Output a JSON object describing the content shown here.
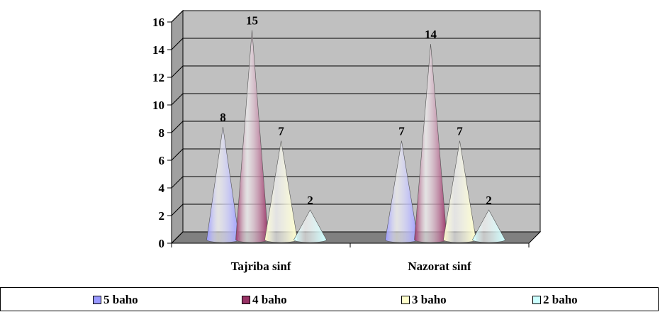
{
  "chart_data": {
    "type": "bar",
    "style": "3d-cone",
    "categories": [
      "Tajriba sinf",
      "Nazorat sinf"
    ],
    "series": [
      {
        "name": "5 baho",
        "values": [
          8,
          7
        ],
        "color": "#9999ff"
      },
      {
        "name": "4 baho",
        "values": [
          15,
          14
        ],
        "color": "#993366"
      },
      {
        "name": "3 baho",
        "values": [
          7,
          7
        ],
        "color": "#ffffcc"
      },
      {
        "name": "2 baho",
        "values": [
          2,
          2
        ],
        "color": "#ccffff"
      }
    ],
    "ylim": [
      0,
      16
    ],
    "yticks": [
      "0",
      "2",
      "4",
      "6",
      "8",
      "10",
      "12",
      "14",
      "16"
    ],
    "grid": true,
    "legend_position": "bottom",
    "wall_color": "#c0c0c0"
  }
}
